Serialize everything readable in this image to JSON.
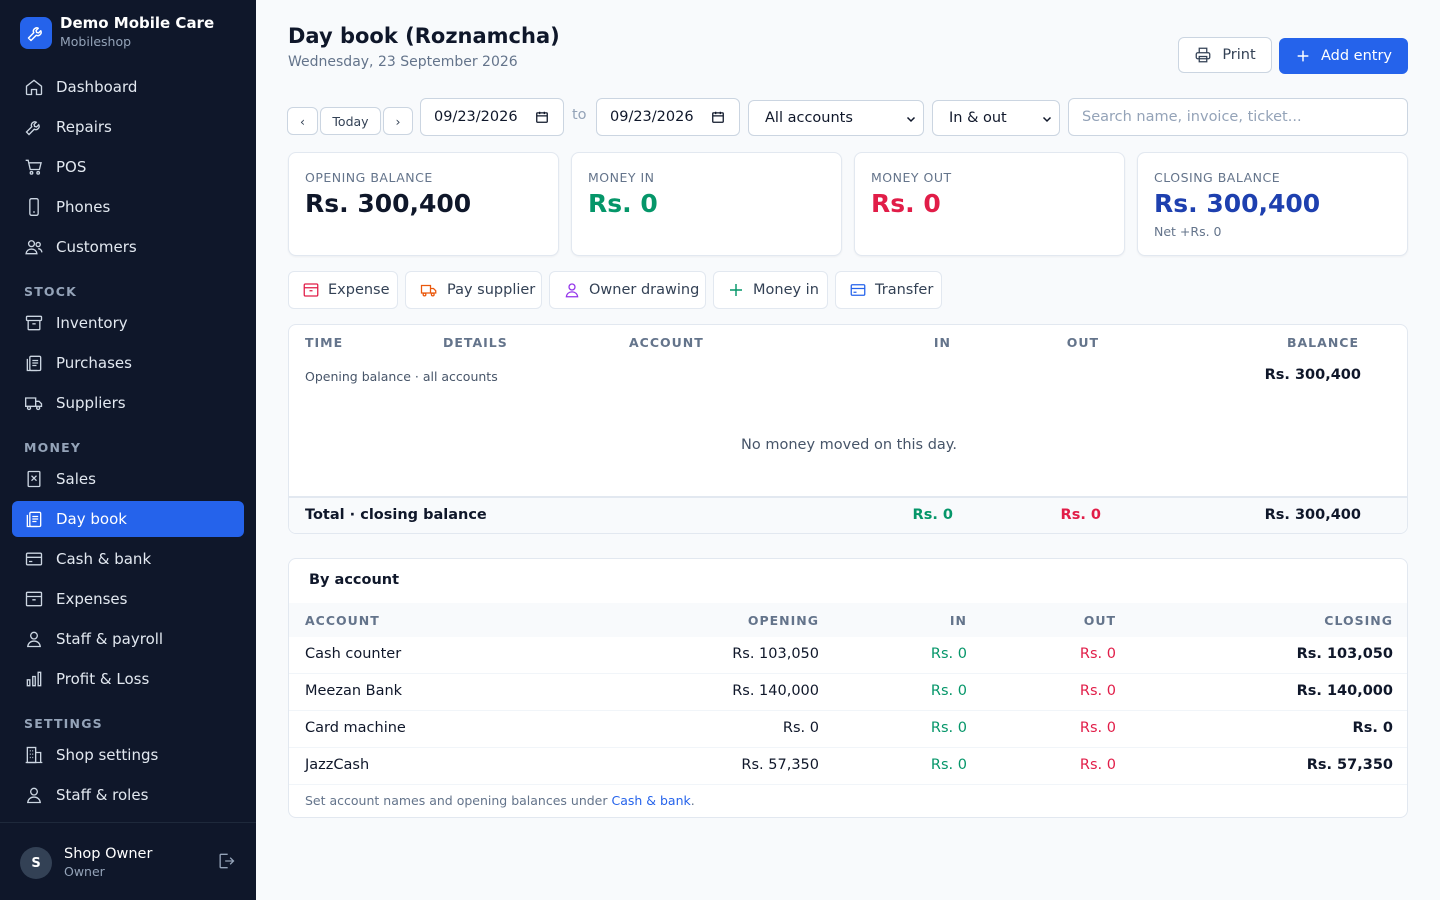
{
  "sidebar": {
    "brand": {
      "name": "Demo Mobile Care",
      "subtitle": "Mobileshop"
    },
    "items_main": [
      {
        "label": "Dashboard",
        "icon": "home-icon"
      },
      {
        "label": "Repairs",
        "icon": "wrench-icon"
      },
      {
        "label": "POS",
        "icon": "cart-icon"
      },
      {
        "label": "Phones",
        "icon": "phone-icon"
      },
      {
        "label": "Customers",
        "icon": "users-icon"
      }
    ],
    "section_stock": "STOCK",
    "items_stock": [
      {
        "label": "Inventory",
        "icon": "archive-icon"
      },
      {
        "label": "Purchases",
        "icon": "clipboard-icon"
      },
      {
        "label": "Suppliers",
        "icon": "truck-icon"
      }
    ],
    "section_money": "MONEY",
    "items_money": [
      {
        "label": "Sales",
        "icon": "receipt-icon"
      },
      {
        "label": "Day book",
        "icon": "clipboard-icon",
        "active": true
      },
      {
        "label": "Cash & bank",
        "icon": "credit-card-icon"
      },
      {
        "label": "Expenses",
        "icon": "archive-icon"
      },
      {
        "label": "Staff & payroll",
        "icon": "user-icon"
      },
      {
        "label": "Profit & Loss",
        "icon": "bar-chart-icon"
      }
    ],
    "section_settings": "SETTINGS",
    "items_settings": [
      {
        "label": "Shop settings",
        "icon": "building-icon"
      },
      {
        "label": "Staff & roles",
        "icon": "user-icon"
      }
    ],
    "user": {
      "initial": "S",
      "name": "Shop Owner",
      "role": "Owner"
    }
  },
  "header": {
    "title": "Day book (Roznamcha)",
    "date": "Wednesday, 23 September 2026",
    "print_label": "Print",
    "add_label": "Add entry"
  },
  "filters": {
    "prev": "‹",
    "today": "Today",
    "next": "›",
    "from_date": "09/23/2026",
    "to_label": "to",
    "to_date": "09/23/2026",
    "account_select": "All accounts",
    "direction_select": "In & out",
    "search_placeholder": "Search name, invoice, ticket..."
  },
  "stats": {
    "opening": {
      "label": "OPENING BALANCE",
      "value": "Rs. 300,400"
    },
    "money_in": {
      "label": "MONEY IN",
      "value": "Rs. 0"
    },
    "money_out": {
      "label": "MONEY OUT",
      "value": "Rs. 0"
    },
    "closing": {
      "label": "CLOSING BALANCE",
      "value": "Rs. 300,400",
      "note": "Net +Rs. 0"
    }
  },
  "actions": {
    "expense": "Expense",
    "pay_supplier": "Pay supplier",
    "owner_drawing": "Owner drawing",
    "money_in": "Money in",
    "transfer": "Transfer"
  },
  "ledger": {
    "columns": {
      "time": "TIME",
      "details": "DETAILS",
      "account": "ACCOUNT",
      "in": "IN",
      "out": "OUT",
      "balance": "BALANCE"
    },
    "opening_label": "Opening balance · all accounts",
    "opening_balance": "Rs. 300,400",
    "empty_message": "No money moved on this day.",
    "total_label": "Total · closing balance",
    "total_in": "Rs. 0",
    "total_out": "Rs. 0",
    "total_balance": "Rs. 300,400"
  },
  "by_account": {
    "title": "By account",
    "columns": {
      "account": "ACCOUNT",
      "opening": "OPENING",
      "in": "IN",
      "out": "OUT",
      "closing": "CLOSING"
    },
    "rows": [
      {
        "account": "Cash counter",
        "opening": "Rs. 103,050",
        "in": "Rs. 0",
        "out": "Rs. 0",
        "closing": "Rs. 103,050"
      },
      {
        "account": "Meezan Bank",
        "opening": "Rs. 140,000",
        "in": "Rs. 0",
        "out": "Rs. 0",
        "closing": "Rs. 140,000"
      },
      {
        "account": "Card machine",
        "opening": "Rs. 0",
        "in": "Rs. 0",
        "out": "Rs. 0",
        "closing": "Rs. 0"
      },
      {
        "account": "JazzCash",
        "opening": "Rs. 57,350",
        "in": "Rs. 0",
        "out": "Rs. 0",
        "closing": "Rs. 57,350"
      }
    ],
    "footer_text": "Set account names and opening balances under ",
    "footer_link": "Cash & bank",
    "footer_end": "."
  },
  "colors": {
    "sidebar_bg": "#0f172a",
    "accent": "#2563eb",
    "in": "#059669",
    "out": "#e11d48",
    "closing": "#1e40af"
  }
}
